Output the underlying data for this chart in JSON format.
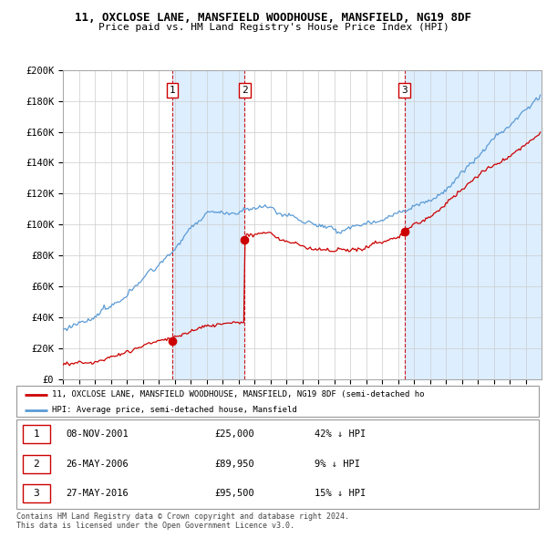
{
  "title": "11, OXCLOSE LANE, MANSFIELD WOODHOUSE, MANSFIELD, NG19 8DF",
  "subtitle": "Price paid vs. HM Land Registry's House Price Index (HPI)",
  "x_start_year": 1995,
  "x_end_year": 2025,
  "y_min": 0,
  "y_max": 200000,
  "y_ticks": [
    0,
    20000,
    40000,
    60000,
    80000,
    100000,
    120000,
    140000,
    160000,
    180000,
    200000
  ],
  "y_tick_labels": [
    "£0",
    "£20K",
    "£40K",
    "£60K",
    "£80K",
    "£100K",
    "£120K",
    "£140K",
    "£160K",
    "£180K",
    "£200K"
  ],
  "sale_times": [
    2001.856,
    2006.396,
    2016.404
  ],
  "sale_prices": [
    25000,
    89950,
    95500
  ],
  "sale_labels": [
    "1",
    "2",
    "3"
  ],
  "hpi_label": "HPI: Average price, semi-detached house, Mansfield",
  "property_label": "11, OXCLOSE LANE, MANSFIELD WOODHOUSE, MANSFIELD, NG19 8DF (semi-detached ho",
  "line_color_red": "#cc0000",
  "line_color_blue": "#5b9bd5",
  "shade_color": "#ddeeff",
  "vline_color": "#cc0000",
  "background_color": "#ffffff",
  "grid_color": "#cccccc",
  "table_rows": [
    {
      "num": "1",
      "date": "08-NOV-2001",
      "price": "£25,000",
      "hpi": "42% ↓ HPI"
    },
    {
      "num": "2",
      "date": "26-MAY-2006",
      "price": "£89,950",
      "hpi": "9% ↓ HPI"
    },
    {
      "num": "3",
      "date": "27-MAY-2016",
      "price": "£95,500",
      "hpi": "15% ↓ HPI"
    }
  ],
  "footer": "Contains HM Land Registry data © Crown copyright and database right 2024.\nThis data is licensed under the Open Government Licence v3.0."
}
